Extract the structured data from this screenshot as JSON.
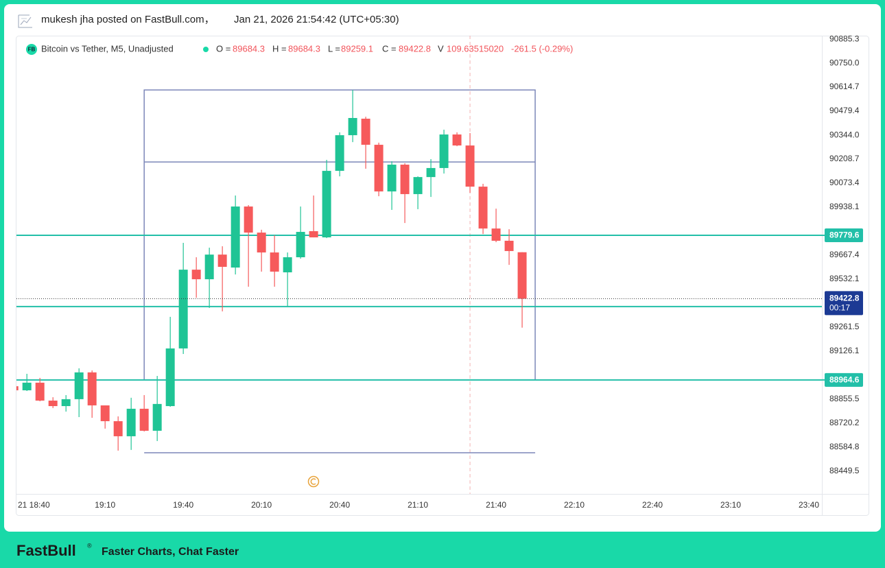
{
  "header": {
    "author_line": "mukesh jha posted on FastBull.com，",
    "timestamp": "Jan 21, 2026 21:54:42 (UTC+05:30)"
  },
  "chart_data": {
    "type": "candlestick",
    "logo": "FB",
    "title": "Bitcoin vs Tether, M5, Unadjusted",
    "legend_labels": {
      "open": "O =",
      "high": "H =",
      "low": "L =",
      "close": "C =",
      "volume": "V"
    },
    "volume": "109.63515020",
    "change": "-261.5 (-0.29%)",
    "countdown": "00:17",
    "up_color": "#1fc495",
    "down_color": "#f65a5b",
    "x": [
      "18:35",
      "18:40",
      "18:45",
      "18:50",
      "18:55",
      "19:00",
      "19:05",
      "19:10",
      "19:15",
      "19:20",
      "19:25",
      "19:30",
      "19:35",
      "19:40",
      "19:45",
      "19:50",
      "19:55",
      "20:00",
      "20:05",
      "20:10",
      "20:15",
      "20:20",
      "20:25",
      "20:30",
      "20:35",
      "20:40",
      "20:45",
      "20:50",
      "20:55",
      "21:00",
      "21:05",
      "21:10",
      "21:15",
      "21:20",
      "21:25",
      "21:30",
      "21:35",
      "21:40",
      "21:45",
      "21:50"
    ],
    "open": [
      88929,
      88906,
      88949,
      88848,
      88817,
      88856,
      89007,
      88821,
      88732,
      88647,
      88802,
      88678,
      88817,
      89142,
      89586,
      89532,
      89671,
      89598,
      89942,
      89795,
      89683,
      89571,
      89656,
      89803,
      89768,
      90143,
      90344,
      90437,
      90290,
      90027,
      90178,
      90012,
      90108,
      90159,
      90348,
      90286,
      90054,
      89818,
      89749,
      89684.3
    ],
    "high": [
      88937,
      88999,
      88976,
      88867,
      88879,
      89030,
      89018,
      88821,
      88759,
      88864,
      88879,
      88987,
      89320,
      89737,
      89656,
      89710,
      89718,
      90004,
      89950,
      89811,
      89780,
      89683,
      89942,
      90004,
      90205,
      90360,
      90599,
      90448,
      90302,
      90197,
      90186,
      90112,
      90209,
      90375,
      90360,
      90356,
      90070,
      89930,
      89814,
      89684.3
    ],
    "low": [
      88898,
      88902,
      88844,
      88806,
      88786,
      88755,
      88751,
      88690,
      88566,
      88570,
      88674,
      88620,
      88813,
      89111,
      89428,
      89370,
      89351,
      89559,
      89490,
      89575,
      89490,
      89378,
      89648,
      89768,
      89764,
      90112,
      90305,
      90155,
      90000,
      89923,
      89849,
      89927,
      89996,
      90128,
      90282,
      90019,
      89787,
      89741,
      89613,
      89259.1
    ],
    "close": [
      88906,
      88949,
      88848,
      88817,
      88856,
      89007,
      88821,
      88732,
      88647,
      88802,
      88678,
      88829,
      89142,
      89586,
      89532,
      89671,
      89602,
      89942,
      89795,
      89683,
      89575,
      89656,
      89799,
      89768,
      90143,
      90344,
      90441,
      90290,
      90027,
      90178,
      90012,
      90108,
      90159,
      90348,
      90286,
      90054,
      89818,
      89749,
      89691,
      89422.8
    ],
    "xlim": [
      "18:36",
      "23:45"
    ],
    "xticks": [
      {
        "value": "18:40",
        "label": "21 18:40"
      },
      "19:10",
      "19:40",
      "20:10",
      "20:40",
      "21:10",
      "21:40",
      "22:10",
      "22:40",
      "23:10",
      "23:40"
    ],
    "ylim": [
      88322,
      90905
    ],
    "yticks": [
      88449.5,
      88584.8,
      88720.2,
      88855.5,
      89126.1,
      89261.5,
      89532.1,
      89667.4,
      89938.1,
      90073.4,
      90208.7,
      {
        "value": 90344,
        "label": "90344.0"
      },
      90479.4,
      90614.7,
      {
        "value": 90750,
        "label": "90750.0"
      },
      90885.3
    ],
    "price_line_color": "#22bfa8",
    "price_lines": [
      {
        "value": 89779.6,
        "show_label": true
      },
      {
        "value": 88964.6,
        "show_label": true
      },
      {
        "value": 89378,
        "show_label": false
      }
    ],
    "last_price_color": "#1c3a94",
    "crosshair_x": "21:30",
    "drawing_color": "#7b86b8",
    "drawings": [
      {
        "kind": "rect",
        "x": [
          "19:25",
          "21:55"
        ],
        "y": [
          88965,
          90599
        ]
      },
      {
        "kind": "segment",
        "x": [
          "19:25",
          "21:55"
        ],
        "y": 90193
      },
      {
        "kind": "segment",
        "x": [
          "19:25",
          "21:55"
        ],
        "y": 88554
      }
    ]
  },
  "footer": {
    "brand": "FastBull",
    "brand_mark": "®",
    "tagline": "Faster Charts, Chat Faster"
  }
}
